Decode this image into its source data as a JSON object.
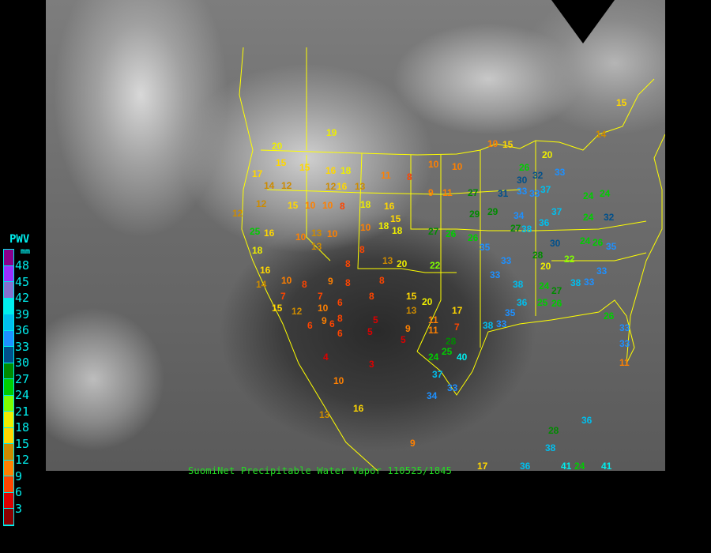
{
  "caption": "SuomiNet Precipitable Water Vapor 110525/1845",
  "legend": {
    "title": "PWV",
    "unit": "mm",
    "labels": [
      "48",
      "45",
      "42",
      "39",
      "36",
      "33",
      "30",
      "27",
      "24",
      "21",
      "18",
      "15",
      "12",
      "9",
      "6",
      "3"
    ],
    "colors": [
      "#8b008b",
      "#9b30ff",
      "#8470d0",
      "#00eeee",
      "#00bfee",
      "#1e90ff",
      "#00508b",
      "#008b00",
      "#00cd00",
      "#7fff00",
      "#eeee00",
      "#ffd700",
      "#cd8b00",
      "#ff8000",
      "#ff4500",
      "#dd0000",
      "#8b0000"
    ]
  },
  "map": {
    "background": "infrared satellite imagery, grayscale",
    "boundary_color": "#ffff00",
    "station_values": [
      19,
      20,
      15,
      15,
      16,
      18,
      17,
      14,
      12,
      12,
      16,
      13,
      11,
      8,
      10,
      10,
      9,
      11,
      27,
      29,
      12,
      15,
      10,
      10,
      8,
      18,
      16,
      12,
      15,
      25,
      16,
      10,
      13,
      10,
      10,
      18,
      18,
      27,
      26,
      26,
      35,
      18,
      13,
      8,
      8,
      13,
      20,
      22,
      16,
      14,
      10,
      8,
      9,
      8,
      8,
      7,
      7,
      6,
      8,
      15,
      20,
      15,
      12,
      10,
      9,
      8,
      5,
      13,
      11,
      17,
      6,
      6,
      6,
      5,
      9,
      11,
      7,
      5,
      24,
      25,
      40,
      28,
      4,
      3,
      37,
      33,
      34,
      10,
      13,
      16,
      9,
      17,
      36,
      41,
      41,
      24,
      36,
      38,
      28,
      26,
      30,
      32,
      33,
      33,
      31,
      33,
      37,
      29,
      34,
      27,
      38,
      36,
      37,
      24,
      24,
      24,
      26,
      35,
      33,
      33,
      38,
      30,
      28,
      33,
      33,
      38,
      24,
      27,
      25,
      26,
      36,
      38,
      33,
      35,
      20,
      22,
      24,
      32,
      26,
      33,
      33,
      11,
      10,
      15,
      20,
      14,
      15
    ]
  }
}
